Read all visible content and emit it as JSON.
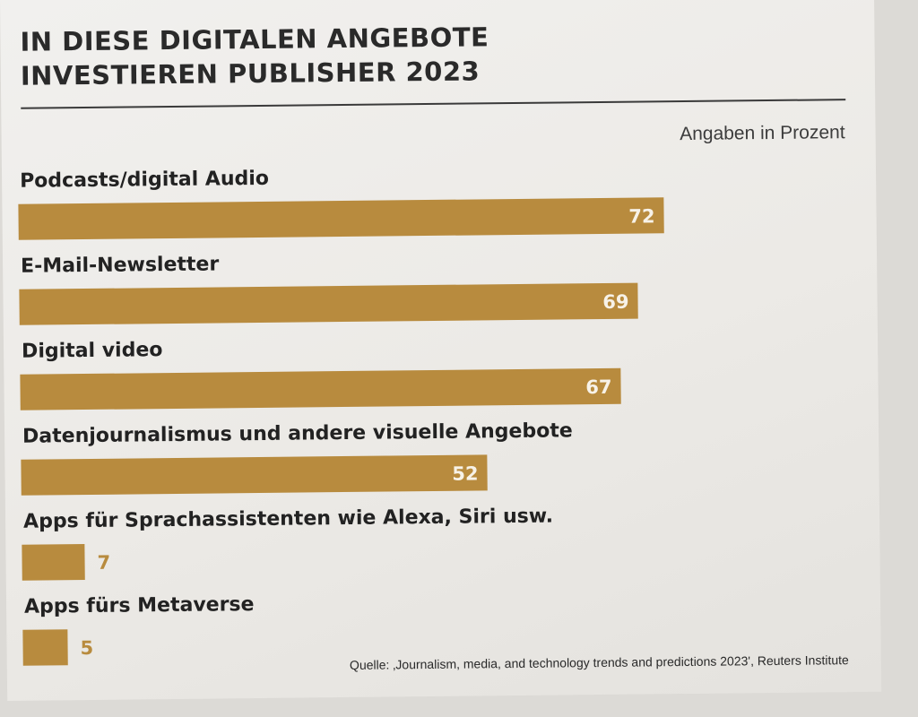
{
  "chart_data": {
    "type": "bar",
    "orientation": "horizontal",
    "title": "IN DIESE DIGITALEN ANGEBOTE INVESTIEREN PUBLISHER 2023",
    "unit_note": "Angaben in Prozent",
    "categories": [
      "Podcasts/digital Audio",
      "E-Mail-Newsletter",
      "Digital video",
      "Datenjournalismus und andere visuelle Angebote",
      "Apps für Sprachassistenten wie Alexa, Siri usw.",
      "Apps fürs Metaverse"
    ],
    "values": [
      72,
      69,
      67,
      52,
      7,
      5
    ],
    "xlim": [
      0,
      100
    ],
    "grid": false,
    "legend": "none",
    "bar_color": "#b88b3e",
    "source": "Quelle: ‚Journalism, media, and technology trends and predictions 2023', Reuters Institute"
  }
}
